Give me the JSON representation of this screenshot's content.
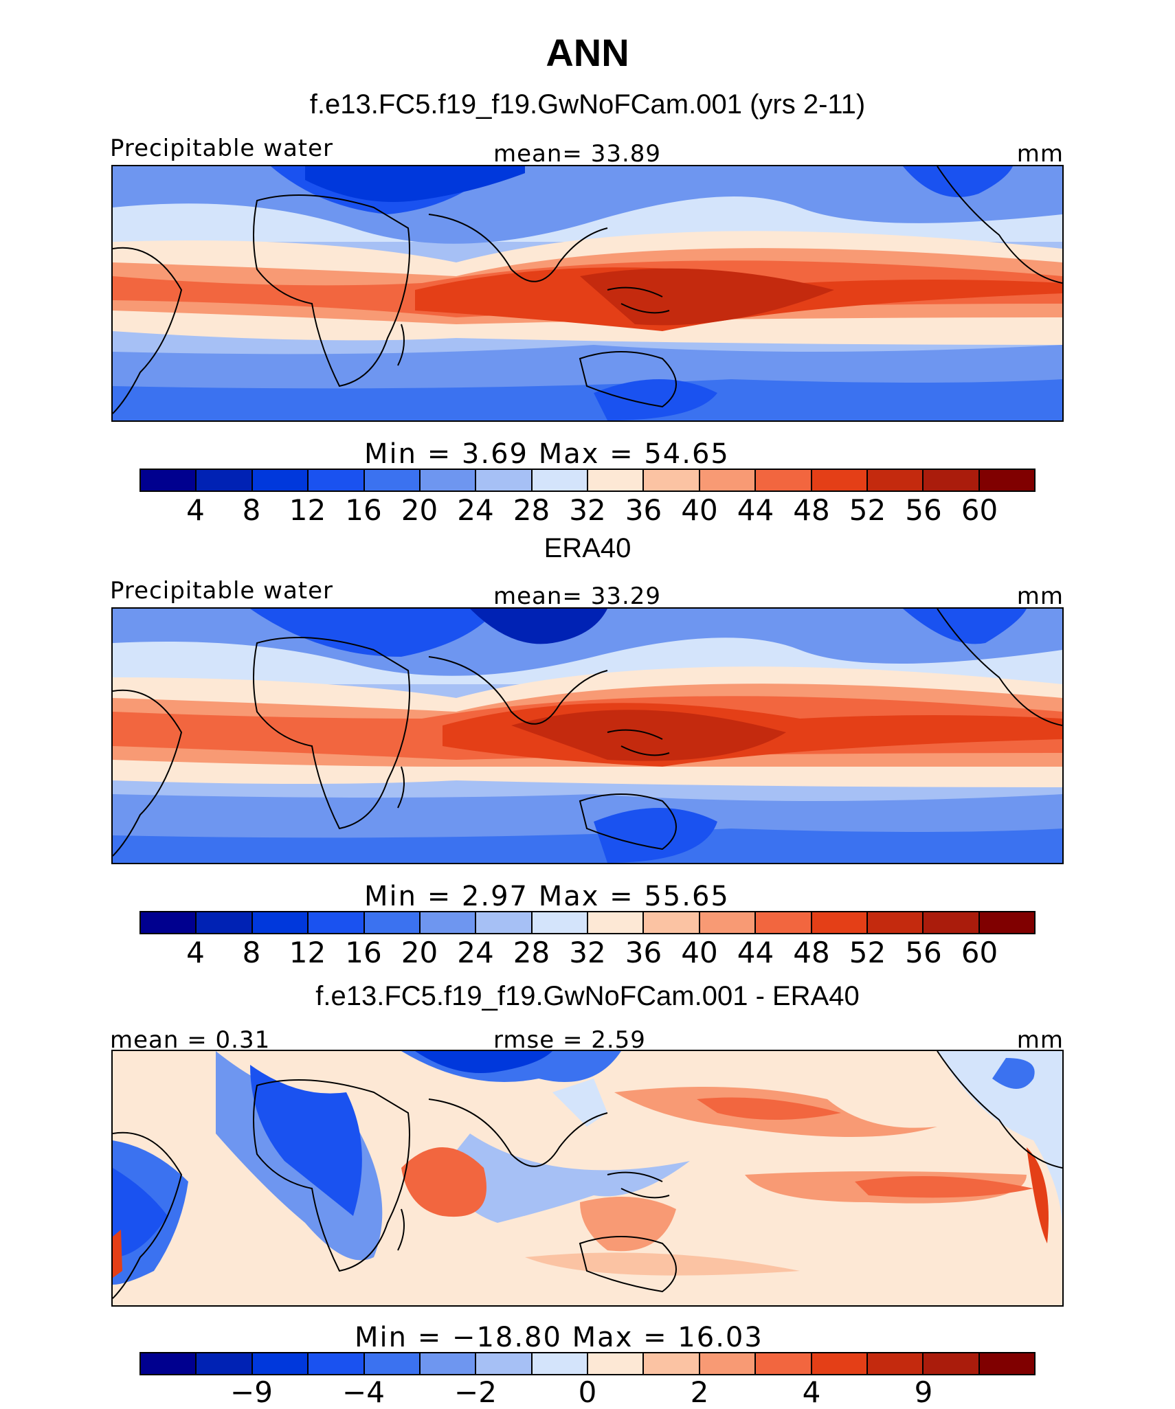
{
  "title": "ANN",
  "palette": [
    "#00008f",
    "#0022b4",
    "#0038dc",
    "#1a52f0",
    "#3b72f0",
    "#6e96f0",
    "#a6c0f5",
    "#d4e4fb",
    "#fde8d5",
    "#fbc3a3",
    "#f89a74",
    "#f2663f",
    "#e43f17",
    "#c42a0e",
    "#aa1c0c",
    "#800000"
  ],
  "panels": [
    {
      "case_title": "f.e13.FC5.f19_f19.GwNoFCam.001 (yrs 2-11)",
      "left_label": "Precipitable water",
      "center_label": "mean=   33.89",
      "units": "mm",
      "stats": "Min  =     3.69  Max  =    54.65",
      "ticks": [
        "4",
        "8",
        "12",
        "16",
        "20",
        "24",
        "28",
        "32",
        "36",
        "40",
        "44",
        "48",
        "52",
        "56",
        "60"
      ]
    },
    {
      "case_title": "ERA40",
      "left_label": "Precipitable water",
      "center_label": "mean=   33.29",
      "units": "mm",
      "stats": "Min  =     2.97  Max  =    55.65",
      "ticks": [
        "4",
        "8",
        "12",
        "16",
        "20",
        "24",
        "28",
        "32",
        "36",
        "40",
        "44",
        "48",
        "52",
        "56",
        "60"
      ]
    },
    {
      "case_title": "f.e13.FC5.f19_f19.GwNoFCam.001 - ERA40",
      "left_label": "mean =    0.31",
      "center_label": "rmse =    2.59",
      "units": "mm",
      "stats": "Min  = −18.80  Max  =    16.03",
      "ticks": [
        "−9",
        "−4",
        "−2",
        "0",
        "2",
        "4",
        "9"
      ]
    }
  ],
  "chart_data": [
    {
      "type": "heatmap",
      "title": "f.e13.FC5.f19_f19.GwNoFCam.001 (yrs 2-11)",
      "variable": "Precipitable water",
      "units": "mm",
      "mean": 33.89,
      "min": 3.69,
      "max": 54.65,
      "contour_levels": [
        4,
        8,
        12,
        16,
        20,
        24,
        28,
        32,
        36,
        40,
        44,
        48,
        52,
        56,
        60
      ]
    },
    {
      "type": "heatmap",
      "title": "ERA40",
      "variable": "Precipitable water",
      "units": "mm",
      "mean": 33.29,
      "min": 2.97,
      "max": 55.65,
      "contour_levels": [
        4,
        8,
        12,
        16,
        20,
        24,
        28,
        32,
        36,
        40,
        44,
        48,
        52,
        56,
        60
      ]
    },
    {
      "type": "heatmap",
      "title": "f.e13.FC5.f19_f19.GwNoFCam.001 - ERA40",
      "units": "mm",
      "mean": 0.31,
      "rmse": 2.59,
      "min": -18.8,
      "max": 16.03,
      "colorbar_tick_labels": [
        -9,
        -4,
        -2,
        0,
        2,
        4,
        9
      ]
    }
  ]
}
